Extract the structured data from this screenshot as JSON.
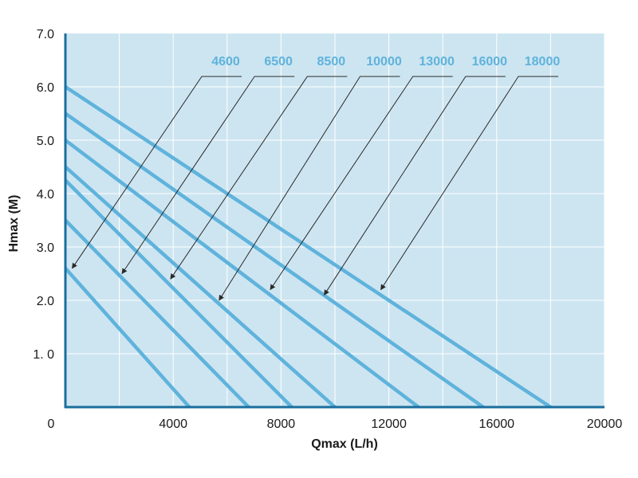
{
  "chart_data": {
    "type": "line",
    "title": "",
    "xlabel": "Qmax (L/h)",
    "ylabel": "Hmax (M)",
    "xlim": [
      0,
      20000
    ],
    "ylim": [
      0,
      7
    ],
    "grid": true,
    "x_tick_labels": [
      {
        "value": 0,
        "label": "0"
      },
      {
        "value": 4000,
        "label": "4000"
      },
      {
        "value": 8000,
        "label": "8000"
      },
      {
        "value": 12000,
        "label": "12000"
      },
      {
        "value": 16000,
        "label": "16000"
      },
      {
        "value": 20000,
        "label": "20000"
      }
    ],
    "y_tick_labels": [
      {
        "value": 1,
        "label": "1. 0"
      },
      {
        "value": 2,
        "label": "2.0"
      },
      {
        "value": 3,
        "label": "3.0"
      },
      {
        "value": 4,
        "label": "4.0"
      },
      {
        "value": 5,
        "label": "5.0"
      },
      {
        "value": 6,
        "label": "6.0"
      },
      {
        "value": 7,
        "label": "7.0"
      }
    ],
    "series": [
      {
        "name": "4600",
        "points": [
          [
            0,
            2.6
          ],
          [
            4600,
            0
          ]
        ],
        "pointer_to": [
          250,
          2.6
        ]
      },
      {
        "name": "6500",
        "points": [
          [
            0,
            3.5
          ],
          [
            6800,
            0
          ]
        ],
        "pointer_to": [
          2100,
          2.5
        ]
      },
      {
        "name": "8500",
        "points": [
          [
            0,
            4.25
          ],
          [
            8400,
            0
          ]
        ],
        "pointer_to": [
          3900,
          2.4
        ]
      },
      {
        "name": "10000",
        "points": [
          [
            0,
            4.5
          ],
          [
            10000,
            0
          ]
        ],
        "pointer_to": [
          5700,
          2.0
        ]
      },
      {
        "name": "13000",
        "points": [
          [
            0,
            5.0
          ],
          [
            13100,
            0
          ]
        ],
        "pointer_to": [
          7600,
          2.2
        ]
      },
      {
        "name": "16000",
        "points": [
          [
            0,
            5.5
          ],
          [
            15500,
            0
          ]
        ],
        "pointer_to": [
          9600,
          2.1
        ]
      },
      {
        "name": "18000",
        "points": [
          [
            0,
            6.0
          ],
          [
            18000,
            0
          ]
        ],
        "pointer_to": [
          11700,
          2.2
        ]
      }
    ],
    "colors": {
      "plot_background": "#cde5f1",
      "series_line": "#5fb3dc",
      "axis": "#1a6e9e",
      "grid": "#ffffff",
      "label": "#5fb3dc",
      "leader": "#2a2a2a"
    }
  }
}
